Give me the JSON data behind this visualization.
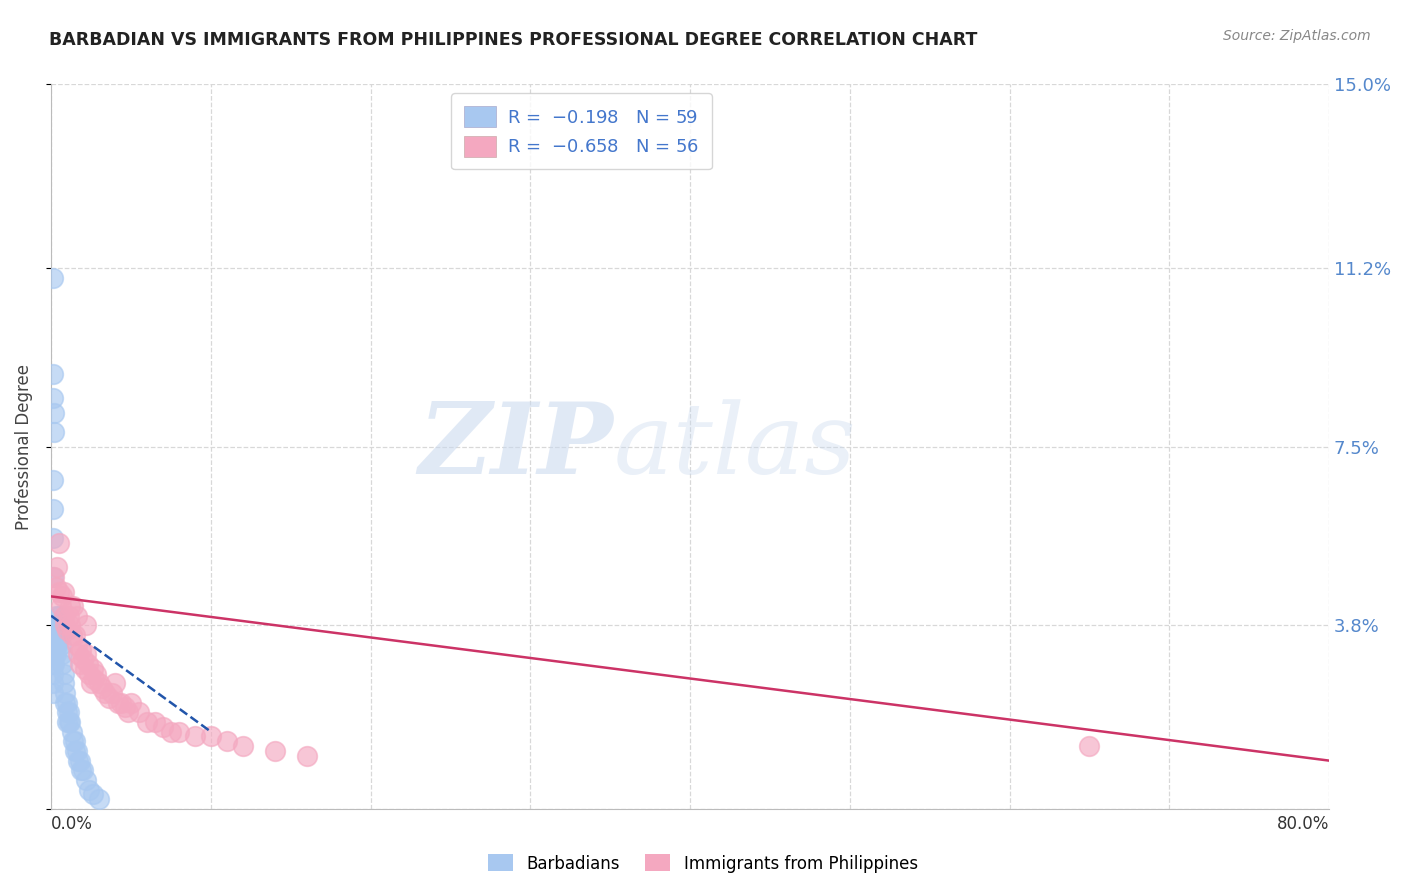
{
  "title": "BARBADIAN VS IMMIGRANTS FROM PHILIPPINES PROFESSIONAL DEGREE CORRELATION CHART",
  "source": "Source: ZipAtlas.com",
  "ylabel": "Professional Degree",
  "x_min": 0.0,
  "x_max": 0.8,
  "y_min": 0.0,
  "y_max": 0.15,
  "x_ticks": [
    0.0,
    0.1,
    0.2,
    0.3,
    0.4,
    0.5,
    0.6,
    0.7,
    0.8
  ],
  "y_ticks_right": [
    0.0,
    0.038,
    0.075,
    0.112,
    0.15
  ],
  "y_tick_labels_right": [
    "",
    "3.8%",
    "7.5%",
    "11.2%",
    "15.0%"
  ],
  "barbadian_color": "#a8c8f0",
  "philippines_color": "#f4a8c0",
  "right_label_color": "#5588cc",
  "legend_text_color": "#4477cc",
  "barbadian_x": [
    0.001,
    0.001,
    0.001,
    0.001,
    0.001,
    0.001,
    0.001,
    0.002,
    0.002,
    0.002,
    0.002,
    0.002,
    0.003,
    0.003,
    0.003,
    0.003,
    0.003,
    0.004,
    0.004,
    0.004,
    0.005,
    0.005,
    0.005,
    0.006,
    0.006,
    0.007,
    0.007,
    0.008,
    0.008,
    0.009,
    0.009,
    0.01,
    0.01,
    0.01,
    0.011,
    0.011,
    0.012,
    0.013,
    0.014,
    0.015,
    0.015,
    0.016,
    0.017,
    0.018,
    0.019,
    0.02,
    0.022,
    0.024,
    0.026,
    0.03,
    0.001,
    0.001,
    0.001,
    0.002,
    0.002,
    0.001,
    0.001,
    0.001,
    0.001
  ],
  "barbadian_y": [
    0.036,
    0.034,
    0.032,
    0.03,
    0.028,
    0.026,
    0.024,
    0.038,
    0.036,
    0.034,
    0.032,
    0.03,
    0.04,
    0.038,
    0.036,
    0.034,
    0.032,
    0.038,
    0.036,
    0.034,
    0.04,
    0.038,
    0.036,
    0.036,
    0.034,
    0.032,
    0.03,
    0.028,
    0.026,
    0.024,
    0.022,
    0.022,
    0.02,
    0.018,
    0.02,
    0.018,
    0.018,
    0.016,
    0.014,
    0.014,
    0.012,
    0.012,
    0.01,
    0.01,
    0.008,
    0.008,
    0.006,
    0.004,
    0.003,
    0.002,
    0.11,
    0.09,
    0.085,
    0.082,
    0.078,
    0.068,
    0.062,
    0.056,
    0.048
  ],
  "philippines_x": [
    0.002,
    0.003,
    0.004,
    0.005,
    0.006,
    0.007,
    0.008,
    0.009,
    0.01,
    0.011,
    0.012,
    0.013,
    0.014,
    0.015,
    0.016,
    0.017,
    0.018,
    0.019,
    0.02,
    0.021,
    0.022,
    0.023,
    0.024,
    0.025,
    0.026,
    0.027,
    0.028,
    0.03,
    0.032,
    0.034,
    0.036,
    0.038,
    0.04,
    0.042,
    0.044,
    0.046,
    0.048,
    0.05,
    0.055,
    0.06,
    0.065,
    0.07,
    0.075,
    0.08,
    0.09,
    0.1,
    0.11,
    0.12,
    0.14,
    0.16,
    0.005,
    0.008,
    0.012,
    0.016,
    0.65,
    0.022
  ],
  "philippines_y": [
    0.048,
    0.046,
    0.05,
    0.045,
    0.042,
    0.044,
    0.04,
    0.038,
    0.037,
    0.04,
    0.038,
    0.036,
    0.042,
    0.036,
    0.034,
    0.032,
    0.03,
    0.033,
    0.031,
    0.029,
    0.032,
    0.03,
    0.028,
    0.026,
    0.029,
    0.027,
    0.028,
    0.026,
    0.025,
    0.024,
    0.023,
    0.024,
    0.026,
    0.022,
    0.022,
    0.021,
    0.02,
    0.022,
    0.02,
    0.018,
    0.018,
    0.017,
    0.016,
    0.016,
    0.015,
    0.015,
    0.014,
    0.013,
    0.012,
    0.011,
    0.055,
    0.045,
    0.042,
    0.04,
    0.013,
    0.038
  ],
  "barbadian_trend_x": [
    0.0,
    0.1
  ],
  "barbadian_trend_y": [
    0.04,
    0.016
  ],
  "philippines_trend_x": [
    0.0,
    0.8
  ],
  "philippines_trend_y": [
    0.044,
    0.01
  ],
  "watermark_zip": "ZIP",
  "watermark_atlas": "atlas",
  "background_color": "#ffffff",
  "grid_color": "#d8d8d8",
  "title_color": "#222222"
}
